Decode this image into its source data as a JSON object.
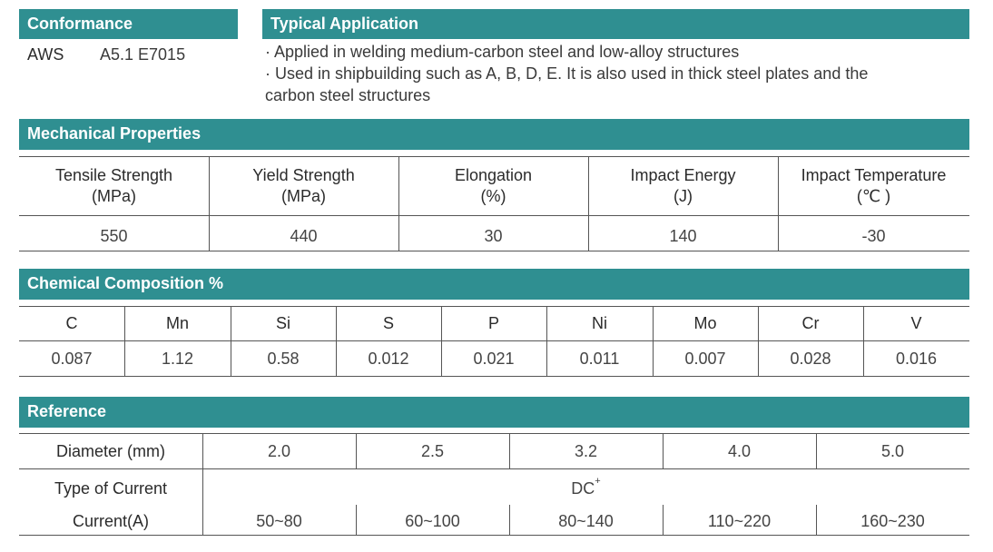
{
  "conformance": {
    "title": "Conformance",
    "standard": "AWS",
    "classification": "A5.1 E7015"
  },
  "application": {
    "title": "Typical Application",
    "lines": [
      "· Applied in welding medium-carbon steel and low-alloy structures",
      "· Used in shipbuilding such as A, B, D, E. It is also used in thick steel plates and the",
      "carbon steel structures"
    ]
  },
  "mechanical": {
    "title": "Mechanical Properties",
    "headers": [
      {
        "name": "Tensile Strength",
        "unit": "(MPa)"
      },
      {
        "name": "Yield Strength",
        "unit": "(MPa)"
      },
      {
        "name": "Elongation",
        "unit": "(%)"
      },
      {
        "name": "Impact Energy",
        "unit": "(J)"
      },
      {
        "name": "Impact Temperature",
        "unit": "(℃ )"
      }
    ],
    "values": [
      "550",
      "440",
      "30",
      "140",
      "-30"
    ]
  },
  "chemical": {
    "title": "Chemical Composition %",
    "elements": [
      "C",
      "Mn",
      "Si",
      "S",
      "P",
      "Ni",
      "Mo",
      "Cr",
      "V"
    ],
    "values": [
      "0.087",
      "1.12",
      "0.58",
      "0.012",
      "0.021",
      "0.011",
      "0.007",
      "0.028",
      "0.016"
    ]
  },
  "reference": {
    "title": "Reference",
    "diameter_label": "Diameter (mm)",
    "diameters": [
      "2.0",
      "2.5",
      "3.2",
      "4.0",
      "5.0"
    ],
    "current_type_label": "Type of Current",
    "current_type": "DC",
    "current_type_sup": "+",
    "current_label": "Current(A)",
    "currents": [
      "50~80",
      "60~100",
      "80~140",
      "110~220",
      "160~230"
    ]
  },
  "colors": {
    "header_bar": "#2f8f91",
    "header_text": "#ffffff",
    "rule": "#555555"
  }
}
